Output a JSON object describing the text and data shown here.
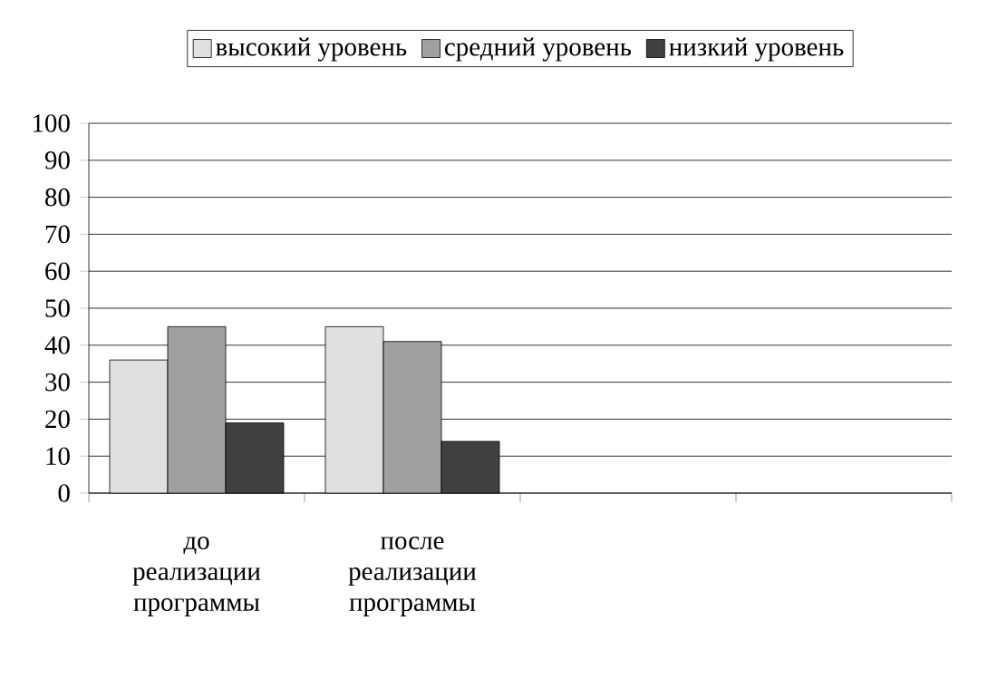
{
  "chart_data": {
    "type": "bar",
    "categories": [
      "до реализации программы",
      "после реализации программы",
      null,
      null
    ],
    "series": [
      {
        "name": "высокий уровень",
        "color": "#e0e0e0",
        "values": [
          36,
          45,
          null,
          null
        ]
      },
      {
        "name": "средний уровень",
        "color": "#a0a0a0",
        "values": [
          45,
          41,
          null,
          null
        ]
      },
      {
        "name": "низкий уровень",
        "color": "#404040",
        "values": [
          19,
          14,
          null,
          null
        ]
      }
    ],
    "ylim": [
      0,
      100
    ],
    "yticks": [
      0,
      10,
      20,
      30,
      40,
      50,
      60,
      70,
      80,
      90,
      100
    ],
    "grid": "y",
    "legend": "top"
  }
}
